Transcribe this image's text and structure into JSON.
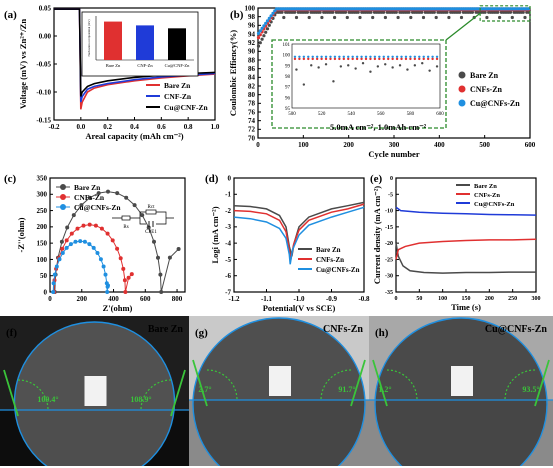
{
  "panels": {
    "a": "(a)",
    "b": "(b)",
    "c": "(c)",
    "d": "(d)",
    "e": "(e)",
    "f": "(f)",
    "g": "(g)",
    "h": "(h)"
  },
  "photos": [
    {
      "label": "Bare Zn",
      "left_angle": "109.4°",
      "right_angle": "108.9°",
      "bg": "#1e1e1e"
    },
    {
      "label": "CNFs-Zn",
      "left_angle": "2.7°",
      "right_angle": "91.7°",
      "bg": "#c9c9c9"
    },
    {
      "label": "Cu@CNFs-Zn",
      "left_angle": "1.2°",
      "right_angle": "93.5°",
      "bg": "#a8a8a8"
    }
  ],
  "chart_data": [
    {
      "id": "a",
      "type": "line",
      "xlabel": "Areal capacity (mAh cm⁻²)",
      "ylabel": "Voltage (mV) vs Zn²⁺/Zn",
      "xlim": [
        -0.2,
        1.0
      ],
      "ylim": [
        -0.15,
        0.05
      ],
      "xticks": [
        "-0.2",
        "0.0",
        "0.2",
        "0.4",
        "0.6",
        "0.8",
        "1.0"
      ],
      "yticks": [
        "-0.15",
        "-0.10",
        "-0.05",
        "0.00",
        "0.05"
      ],
      "legend": [
        "Bare Zn",
        "CNF-Zn",
        "Cu@CNF-Zn"
      ],
      "legend_position": "bottom-right",
      "series": [
        {
          "name": "Bare Zn",
          "color": "#e03030",
          "points": [
            [
              -0.2,
              0.048
            ],
            [
              -0.01,
              0.048
            ],
            [
              0.0,
              -0.131
            ],
            [
              0.01,
              -0.118
            ],
            [
              0.05,
              -0.1
            ],
            [
              0.1,
              -0.093
            ],
            [
              0.2,
              -0.087
            ],
            [
              0.4,
              -0.08
            ],
            [
              0.6,
              -0.075
            ],
            [
              0.8,
              -0.071
            ],
            [
              1.0,
              -0.068
            ]
          ]
        },
        {
          "name": "CNF-Zn",
          "color": "#1f3bd8",
          "points": [
            [
              -0.2,
              0.048
            ],
            [
              -0.01,
              0.048
            ],
            [
              0.0,
              -0.118
            ],
            [
              0.01,
              -0.108
            ],
            [
              0.05,
              -0.095
            ],
            [
              0.1,
              -0.09
            ],
            [
              0.2,
              -0.085
            ],
            [
              0.4,
              -0.078
            ],
            [
              0.6,
              -0.073
            ],
            [
              0.8,
              -0.07
            ],
            [
              1.0,
              -0.067
            ]
          ]
        },
        {
          "name": "Cu@CNF-Zn",
          "color": "#000000",
          "points": [
            [
              -0.2,
              0.048
            ],
            [
              -0.01,
              0.048
            ],
            [
              0.0,
              -0.108
            ],
            [
              0.01,
              -0.1
            ],
            [
              0.05,
              -0.09
            ],
            [
              0.1,
              -0.085
            ],
            [
              0.2,
              -0.08
            ],
            [
              0.4,
              -0.074
            ],
            [
              0.6,
              -0.07
            ],
            [
              0.8,
              -0.067
            ],
            [
              1.0,
              -0.065
            ]
          ]
        }
      ],
      "inset": {
        "type": "bar",
        "ylabel": "Nucleation overpotential (mV)",
        "categories": [
          "Bare Zn",
          "CNF-Zn",
          "Cu@CNF-Zn"
        ],
        "values": [
          131,
          118,
          108
        ],
        "ylim": [
          0,
          150
        ],
        "colors": [
          "#e03030",
          "#1f3bd8",
          "#000000"
        ]
      }
    },
    {
      "id": "b",
      "type": "scatter",
      "xlabel": "Cycle number",
      "ylabel": "Coulombic Effiency(%)",
      "xlim": [
        0,
        600
      ],
      "ylim": [
        70,
        100
      ],
      "xticks": [
        "0",
        "100",
        "200",
        "300",
        "400",
        "500",
        "600"
      ],
      "yticks": [
        "70",
        "72",
        "74",
        "76",
        "78",
        "80",
        "82",
        "84",
        "86",
        "88",
        "90",
        "92",
        "94",
        "96",
        "98",
        "100"
      ],
      "annotation": "5.0mA cm⁻², 1.0mAh cm⁻²",
      "legend": [
        "Bare Zn",
        "CNFs-Zn",
        "Cu@CNFs-Zn"
      ],
      "legend_position": "right",
      "series": [
        {
          "name": "Bare Zn",
          "color": "#4a4a4a",
          "y_start": 91,
          "y_plateau": 99.0
        },
        {
          "name": "CNFs-Zn",
          "color": "#e03030",
          "y_start": 93,
          "y_plateau": 99.6
        },
        {
          "name": "Cu@CNFs-Zn",
          "color": "#1f8fe0",
          "y_start": 94,
          "y_plateau": 99.8
        }
      ],
      "inset": {
        "xlim": [
          500,
          600
        ],
        "ylim": [
          95,
          101
        ],
        "xticks": [
          "500",
          "520",
          "540",
          "560",
          "580",
          "600"
        ],
        "yticks": [
          "95",
          "96",
          "97",
          "98",
          "99",
          "100",
          "101"
        ],
        "bare_values": [
          98.6,
          97.2,
          99.0,
          98.8,
          99.1,
          97.5,
          98.9,
          99.0,
          98.7,
          99.2,
          98.4,
          98.9,
          99.1,
          98.8,
          99.0,
          98.6,
          99.0,
          99.2,
          98.5,
          98.9
        ],
        "cnfs_value": 99.6,
        "cu_value": 99.8
      }
    },
    {
      "id": "c",
      "type": "scatter",
      "xlabel": "Z'(ohm)",
      "ylabel": "-Z''(ohm)",
      "xlim": [
        0,
        850
      ],
      "ylim": [
        0,
        350
      ],
      "xticks": [
        "0",
        "200",
        "400",
        "600",
        "800"
      ],
      "yticks": [
        "0",
        "50",
        "100",
        "150",
        "200",
        "250",
        "300",
        "350"
      ],
      "legend": [
        "Bare Zn",
        "CNFs-Zn",
        "Cu@CNFs-Zn"
      ],
      "legend_position": "top-left",
      "circuit": {
        "labels": [
          "Rs",
          "Rct",
          "CPE1"
        ]
      },
      "series": [
        {
          "name": "Bare Zn",
          "color": "#4a4a4a",
          "r0": 30,
          "rct": 670,
          "tail_end": 810,
          "tail_y": 132
        },
        {
          "name": "CNFs-Zn",
          "color": "#e03030",
          "r0": 25,
          "rct": 450,
          "tail_end": 515,
          "tail_y": 55
        },
        {
          "name": "Cu@CNFs-Zn",
          "color": "#1f8fe0",
          "r0": 20,
          "rct": 340,
          "tail_end": 365,
          "tail_y": 20
        }
      ]
    },
    {
      "id": "d",
      "type": "line",
      "xlabel": "Potential(V vs SCE)",
      "ylabel": "Logi (mA cm⁻²)",
      "xlim": [
        -1.2,
        -0.8
      ],
      "ylim": [
        -7,
        0
      ],
      "xticks": [
        "-1.2",
        "-1.1",
        "-1.0",
        "-0.9",
        "-0.8"
      ],
      "yticks": [
        "-7",
        "-6",
        "-5",
        "-4",
        "-3",
        "-2",
        "-1",
        "0"
      ],
      "legend": [
        "Bare Zn",
        "CNFs-Zn",
        "Cu@CNFs-Zn"
      ],
      "legend_position": "bottom-right",
      "series": [
        {
          "name": "Bare Zn",
          "color": "#4a4a4a",
          "points": [
            [
              -1.2,
              -1.7
            ],
            [
              -1.15,
              -1.75
            ],
            [
              -1.1,
              -1.9
            ],
            [
              -1.06,
              -2.3
            ],
            [
              -1.04,
              -3.0
            ],
            [
              -1.03,
              -4.2
            ],
            [
              -1.022,
              -4.8
            ],
            [
              -1.015,
              -4.0
            ],
            [
              -1.0,
              -3.0
            ],
            [
              -0.97,
              -2.4
            ],
            [
              -0.9,
              -1.9
            ],
            [
              -0.85,
              -1.7
            ],
            [
              -0.8,
              -1.5
            ]
          ]
        },
        {
          "name": "CNFs-Zn",
          "color": "#e03030",
          "points": [
            [
              -1.2,
              -2.0
            ],
            [
              -1.15,
              -2.05
            ],
            [
              -1.1,
              -2.2
            ],
            [
              -1.06,
              -2.6
            ],
            [
              -1.04,
              -3.3
            ],
            [
              -1.03,
              -4.4
            ],
            [
              -1.025,
              -5.0
            ],
            [
              -1.017,
              -4.1
            ],
            [
              -1.0,
              -3.2
            ],
            [
              -0.97,
              -2.6
            ],
            [
              -0.9,
              -2.1
            ],
            [
              -0.85,
              -1.9
            ],
            [
              -0.8,
              -1.6
            ]
          ]
        },
        {
          "name": "Cu@CNFs-Zn",
          "color": "#1f8fe0",
          "points": [
            [
              -1.2,
              -2.4
            ],
            [
              -1.15,
              -2.5
            ],
            [
              -1.1,
              -2.7
            ],
            [
              -1.06,
              -3.1
            ],
            [
              -1.04,
              -3.7
            ],
            [
              -1.03,
              -4.7
            ],
            [
              -1.027,
              -5.3
            ],
            [
              -1.02,
              -4.4
            ],
            [
              -1.0,
              -3.5
            ],
            [
              -0.97,
              -2.9
            ],
            [
              -0.9,
              -2.4
            ],
            [
              -0.85,
              -2.1
            ],
            [
              -0.8,
              -1.8
            ]
          ]
        }
      ]
    },
    {
      "id": "e",
      "type": "line",
      "xlabel": "Time (s)",
      "ylabel": "Current density (mA cm⁻²)",
      "xlim": [
        0,
        300
      ],
      "ylim": [
        -35,
        0
      ],
      "xticks": [
        "0",
        "50",
        "100",
        "150",
        "200",
        "250",
        "300"
      ],
      "yticks": [
        "-35",
        "-30",
        "-25",
        "-20",
        "-15",
        "-10",
        "-5",
        "0"
      ],
      "legend": [
        "Bare Zn",
        "CNFs-Zn",
        "Cu@CNFs-Zn"
      ],
      "legend_position": "top-right",
      "series": [
        {
          "name": "Bare Zn",
          "color": "#4a4a4a",
          "points": [
            [
              0,
              -20
            ],
            [
              5,
              -24
            ],
            [
              15,
              -27
            ],
            [
              30,
              -28.5
            ],
            [
              60,
              -29
            ],
            [
              100,
              -29.2
            ],
            [
              150,
              -29
            ],
            [
              200,
              -29
            ],
            [
              250,
              -28.9
            ],
            [
              300,
              -28.9
            ]
          ]
        },
        {
          "name": "CNFs-Zn",
          "color": "#e03030",
          "points": [
            [
              0,
              -25
            ],
            [
              5,
              -22
            ],
            [
              20,
              -21
            ],
            [
              50,
              -20
            ],
            [
              100,
              -19.5
            ],
            [
              150,
              -19.2
            ],
            [
              200,
              -19
            ],
            [
              250,
              -19
            ],
            [
              300,
              -18.8
            ]
          ]
        },
        {
          "name": "Cu@CNFs-Zn",
          "color": "#1f3bd8",
          "points": [
            [
              0,
              -9
            ],
            [
              10,
              -10
            ],
            [
              50,
              -10.5
            ],
            [
              100,
              -10.8
            ],
            [
              150,
              -11
            ],
            [
              200,
              -11.2
            ],
            [
              250,
              -11.3
            ],
            [
              300,
              -11.4
            ]
          ]
        }
      ]
    }
  ]
}
